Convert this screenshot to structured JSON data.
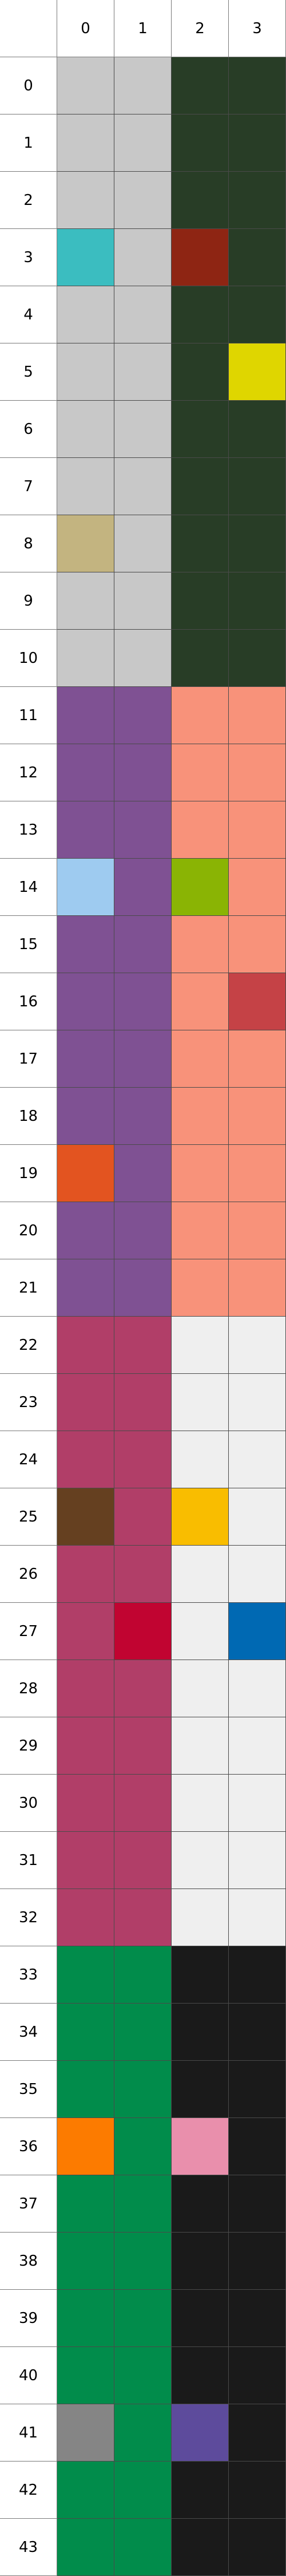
{
  "columns": [
    "0",
    "1",
    "2",
    "3"
  ],
  "rows": [
    "0",
    "1",
    "2",
    "3",
    "4",
    "5",
    "6",
    "7",
    "8",
    "9",
    "10",
    "11",
    "12",
    "13",
    "14",
    "15",
    "16",
    "17",
    "18",
    "19",
    "20",
    "21",
    "22",
    "23",
    "24",
    "25",
    "26",
    "27",
    "28",
    "29",
    "30",
    "31",
    "32",
    "33",
    "34",
    "35",
    "36",
    "37",
    "38",
    "39",
    "40",
    "41",
    "42",
    "43"
  ],
  "palette": {
    "light_gray": "#c8c8c8",
    "dark_green": "#283d26",
    "teal": "#3bbdc0",
    "rust": "#8e2513",
    "yellow": "#dfd600",
    "tan": "#c3b480",
    "purple": "#7f5193",
    "salmon": "#f8927a",
    "light_blue": "#9ecbf0",
    "lime": "#8ab404",
    "brick_red": "#c54246",
    "orange_red": "#e35420",
    "raspberry": "#b13e68",
    "off_white": "#efefef",
    "brown": "#654020",
    "amber": "#f9bd00",
    "crimson": "#c10431",
    "blue": "#0069b3",
    "green": "#018c4b",
    "black": "#1a1a1a",
    "orange": "#fc7b00",
    "pink": "#e98fac",
    "gray": "#858585",
    "violet": "#5d4b9c"
  },
  "cells": [
    [
      "#c8c8c8",
      "#c8c8c8",
      "#283d26",
      "#283d26"
    ],
    [
      "#c8c8c8",
      "#c8c8c8",
      "#283d26",
      "#283d26"
    ],
    [
      "#c8c8c8",
      "#c8c8c8",
      "#283d26",
      "#283d26"
    ],
    [
      "#3bbdc0",
      "#c8c8c8",
      "#8e2513",
      "#283d26"
    ],
    [
      "#c8c8c8",
      "#c8c8c8",
      "#283d26",
      "#283d26"
    ],
    [
      "#c8c8c8",
      "#c8c8c8",
      "#283d26",
      "#dfd600"
    ],
    [
      "#c8c8c8",
      "#c8c8c8",
      "#283d26",
      "#283d26"
    ],
    [
      "#c8c8c8",
      "#c8c8c8",
      "#283d26",
      "#283d26"
    ],
    [
      "#c3b480",
      "#c8c8c8",
      "#283d26",
      "#283d26"
    ],
    [
      "#c8c8c8",
      "#c8c8c8",
      "#283d26",
      "#283d26"
    ],
    [
      "#c8c8c8",
      "#c8c8c8",
      "#283d26",
      "#283d26"
    ],
    [
      "#7f5193",
      "#7f5193",
      "#f8927a",
      "#f8927a"
    ],
    [
      "#7f5193",
      "#7f5193",
      "#f8927a",
      "#f8927a"
    ],
    [
      "#7f5193",
      "#7f5193",
      "#f8927a",
      "#f8927a"
    ],
    [
      "#9ecbf0",
      "#7f5193",
      "#8ab404",
      "#f8927a"
    ],
    [
      "#7f5193",
      "#7f5193",
      "#f8927a",
      "#f8927a"
    ],
    [
      "#7f5193",
      "#7f5193",
      "#f8927a",
      "#c54246"
    ],
    [
      "#7f5193",
      "#7f5193",
      "#f8927a",
      "#f8927a"
    ],
    [
      "#7f5193",
      "#7f5193",
      "#f8927a",
      "#f8927a"
    ],
    [
      "#e35420",
      "#7f5193",
      "#f8927a",
      "#f8927a"
    ],
    [
      "#7f5193",
      "#7f5193",
      "#f8927a",
      "#f8927a"
    ],
    [
      "#7f5193",
      "#7f5193",
      "#f8927a",
      "#f8927a"
    ],
    [
      "#b13e68",
      "#b13e68",
      "#efefef",
      "#efefef"
    ],
    [
      "#b13e68",
      "#b13e68",
      "#efefef",
      "#efefef"
    ],
    [
      "#b13e68",
      "#b13e68",
      "#efefef",
      "#efefef"
    ],
    [
      "#654020",
      "#b13e68",
      "#f9bd00",
      "#efefef"
    ],
    [
      "#b13e68",
      "#b13e68",
      "#efefef",
      "#efefef"
    ],
    [
      "#b13e68",
      "#c10431",
      "#efefef",
      "#0069b3"
    ],
    [
      "#b13e68",
      "#b13e68",
      "#efefef",
      "#efefef"
    ],
    [
      "#b13e68",
      "#b13e68",
      "#efefef",
      "#efefef"
    ],
    [
      "#b13e68",
      "#b13e68",
      "#efefef",
      "#efefef"
    ],
    [
      "#b13e68",
      "#b13e68",
      "#efefef",
      "#efefef"
    ],
    [
      "#b13e68",
      "#b13e68",
      "#efefef",
      "#efefef"
    ],
    [
      "#018c4b",
      "#018c4b",
      "#1a1a1a",
      "#1a1a1a"
    ],
    [
      "#018c4b",
      "#018c4b",
      "#1a1a1a",
      "#1a1a1a"
    ],
    [
      "#018c4b",
      "#018c4b",
      "#1a1a1a",
      "#1a1a1a"
    ],
    [
      "#fc7b00",
      "#018c4b",
      "#e98fac",
      "#1a1a1a"
    ],
    [
      "#018c4b",
      "#018c4b",
      "#1a1a1a",
      "#1a1a1a"
    ],
    [
      "#018c4b",
      "#018c4b",
      "#1a1a1a",
      "#1a1a1a"
    ],
    [
      "#018c4b",
      "#018c4b",
      "#1a1a1a",
      "#1a1a1a"
    ],
    [
      "#018c4b",
      "#018c4b",
      "#1a1a1a",
      "#1a1a1a"
    ],
    [
      "#858585",
      "#018c4b",
      "#5d4b9c",
      "#1a1a1a"
    ],
    [
      "#018c4b",
      "#018c4b",
      "#1a1a1a",
      "#1a1a1a"
    ],
    [
      "#018c4b",
      "#018c4b",
      "#1a1a1a",
      "#1a1a1a"
    ]
  ]
}
